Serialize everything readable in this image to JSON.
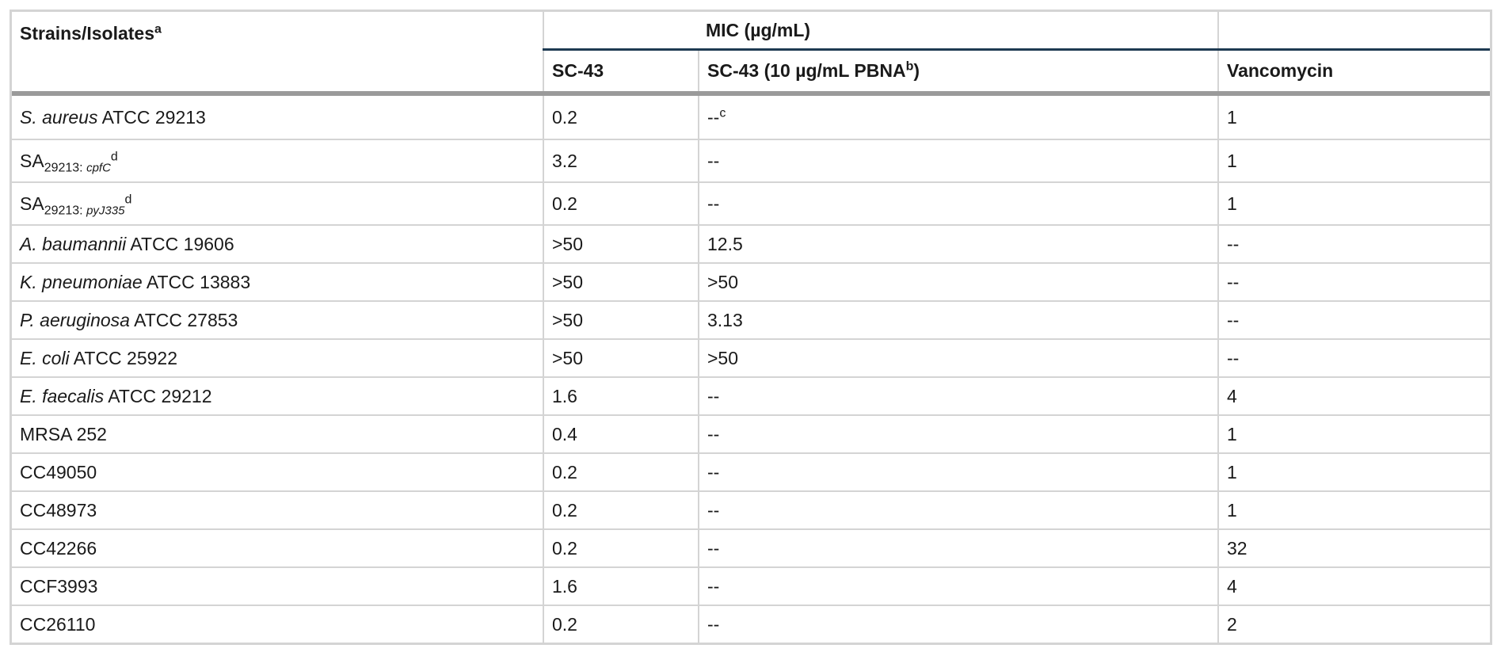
{
  "table": {
    "header": {
      "strains_label": "Strains/Isolates",
      "strains_note": "a",
      "group_label": "MIC (µg/mL)",
      "col_sc43": "SC-43",
      "col_sc43_pbna": "SC-43 (10 µg/mL PBNA",
      "col_sc43_pbna_note": "b",
      "col_sc43_pbna_close": ")",
      "col_vanco": "Vancomycin"
    },
    "rows": [
      {
        "species": "S. aureus",
        "strain": " ATCC 29213",
        "sc43": "0.2",
        "pbna": "--",
        "pbna_note": "c",
        "vanco": "1"
      },
      {
        "prefix": "SA",
        "sub_num": "29213: ",
        "sub_gene": "cpfC",
        "note": "d",
        "sc43": "3.2",
        "pbna": "--",
        "vanco": "1"
      },
      {
        "prefix": "SA",
        "sub_num": "29213: ",
        "sub_gene": "pyJ335",
        "note": "d",
        "sc43": "0.2",
        "pbna": "--",
        "vanco": "1"
      },
      {
        "species": "A. baumannii",
        "strain": " ATCC 19606",
        "sc43": ">50",
        "pbna": "12.5",
        "vanco": "--"
      },
      {
        "species": "K. pneumoniae",
        "strain": " ATCC 13883",
        "sc43": ">50",
        "pbna": ">50",
        "vanco": "--"
      },
      {
        "species": "P. aeruginosa",
        "strain": " ATCC 27853",
        "sc43": ">50",
        "pbna": "3.13",
        "vanco": "--"
      },
      {
        "species": "E. coli",
        "strain": " ATCC 25922",
        "sc43": ">50",
        "pbna": ">50",
        "vanco": "--"
      },
      {
        "species": "E. faecalis",
        "strain": " ATCC 29212",
        "sc43": "1.6",
        "pbna": "--",
        "vanco": "4"
      },
      {
        "strain": "MRSA 252",
        "sc43": "0.4",
        "pbna": "--",
        "vanco": "1"
      },
      {
        "strain": "CC49050",
        "sc43": "0.2",
        "pbna": "--",
        "vanco": "1"
      },
      {
        "strain": "CC48973",
        "sc43": "0.2",
        "pbna": "--",
        "vanco": "1"
      },
      {
        "strain": "CC42266",
        "sc43": "0.2",
        "pbna": "--",
        "vanco": "32"
      },
      {
        "strain": "CCF3993",
        "sc43": "1.6",
        "pbna": "--",
        "vanco": "4"
      },
      {
        "strain": "CC26110",
        "sc43": "0.2",
        "pbna": "--",
        "vanco": "2"
      }
    ]
  }
}
